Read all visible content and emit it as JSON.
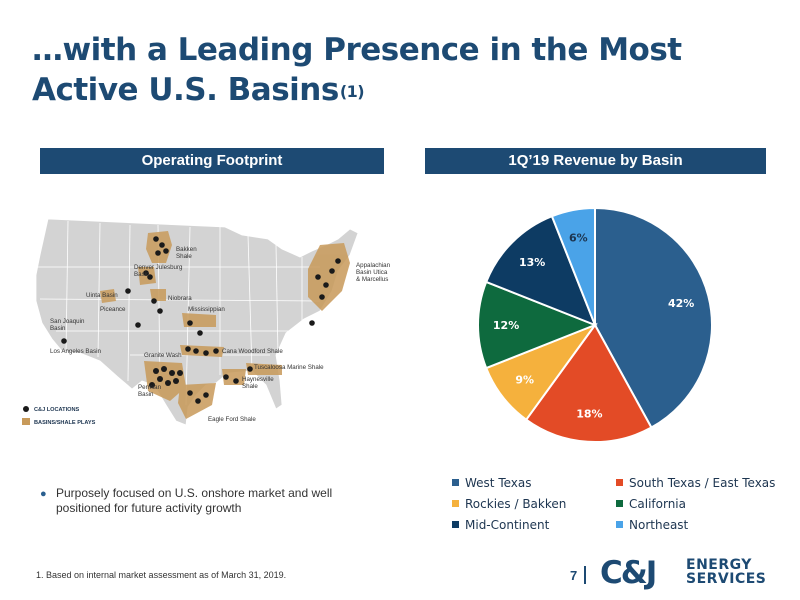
{
  "title": {
    "line1": "…with a Leading Presence in the Most",
    "line2": "Active U.S. Basins",
    "superscript": "(1)"
  },
  "left_panel": {
    "header": "Operating Footprint",
    "map_labels": {
      "bakken": [
        "Bakken",
        "Shale"
      ],
      "dj": [
        "Denver Julesburg",
        "Basin"
      ],
      "uinta": "Uinta Basin",
      "niobrara": "Niobrara",
      "mississippian": "Mississippian",
      "piceance": "Piceance",
      "sjv": [
        "San Joaquin",
        "Basin"
      ],
      "la": "Los Angeles Basin",
      "granite": "Granite Wash",
      "cana": "Cana Woodford Shale",
      "tuscaloosa": "Tuscaloosa Marine Shale",
      "haynesville": [
        "Haynesville",
        "Shale"
      ],
      "permian": [
        "Permian",
        "Basin"
      ],
      "eagle": "Eagle Ford Shale",
      "appalachian": [
        "Appalachian",
        "Basin Utica",
        "& Marcellus"
      ]
    },
    "map_legend": {
      "locations": "C&J LOCATIONS",
      "basins": "BASINS/SHALE PLAYS"
    }
  },
  "right_panel": {
    "header": "1Q’19 Revenue by Basin"
  },
  "chart_data": {
    "type": "pie",
    "title": "1Q’19 Revenue by Basin",
    "categories": [
      "West Texas",
      "South Texas / East Texas",
      "Rockies / Bakken",
      "California",
      "Mid-Continent",
      "Northeast"
    ],
    "values": [
      42,
      18,
      9,
      12,
      13,
      6
    ],
    "data_labels": [
      "42%",
      "18%",
      "9%",
      "12%",
      "13%",
      "6%"
    ],
    "colors": [
      "#2b5f8e",
      "#e34b26",
      "#f5b13d",
      "#0e6a3e",
      "#0d3b63",
      "#4aa3e8"
    ],
    "label_colors": [
      "#ffffff",
      "#ffffff",
      "#ffffff",
      "#ffffff",
      "#ffffff",
      "#1d3550"
    ],
    "legend_position": "bottom",
    "start_angle": "12 o'clock, clockwise"
  },
  "bullet": {
    "text": "Purposely focused on U.S. onshore market and well positioned for future activity growth"
  },
  "footnote": "1. Based on internal market assessment as of March 31, 2019.",
  "page_number": "7",
  "logo": {
    "mark": "C&J",
    "line1": "ENERGY",
    "line2": "SERVICES"
  },
  "colors": {
    "brand_navy": "#1d4a73",
    "basin_tan": "#c89a5a",
    "map_gray": "#d3d3d3"
  }
}
